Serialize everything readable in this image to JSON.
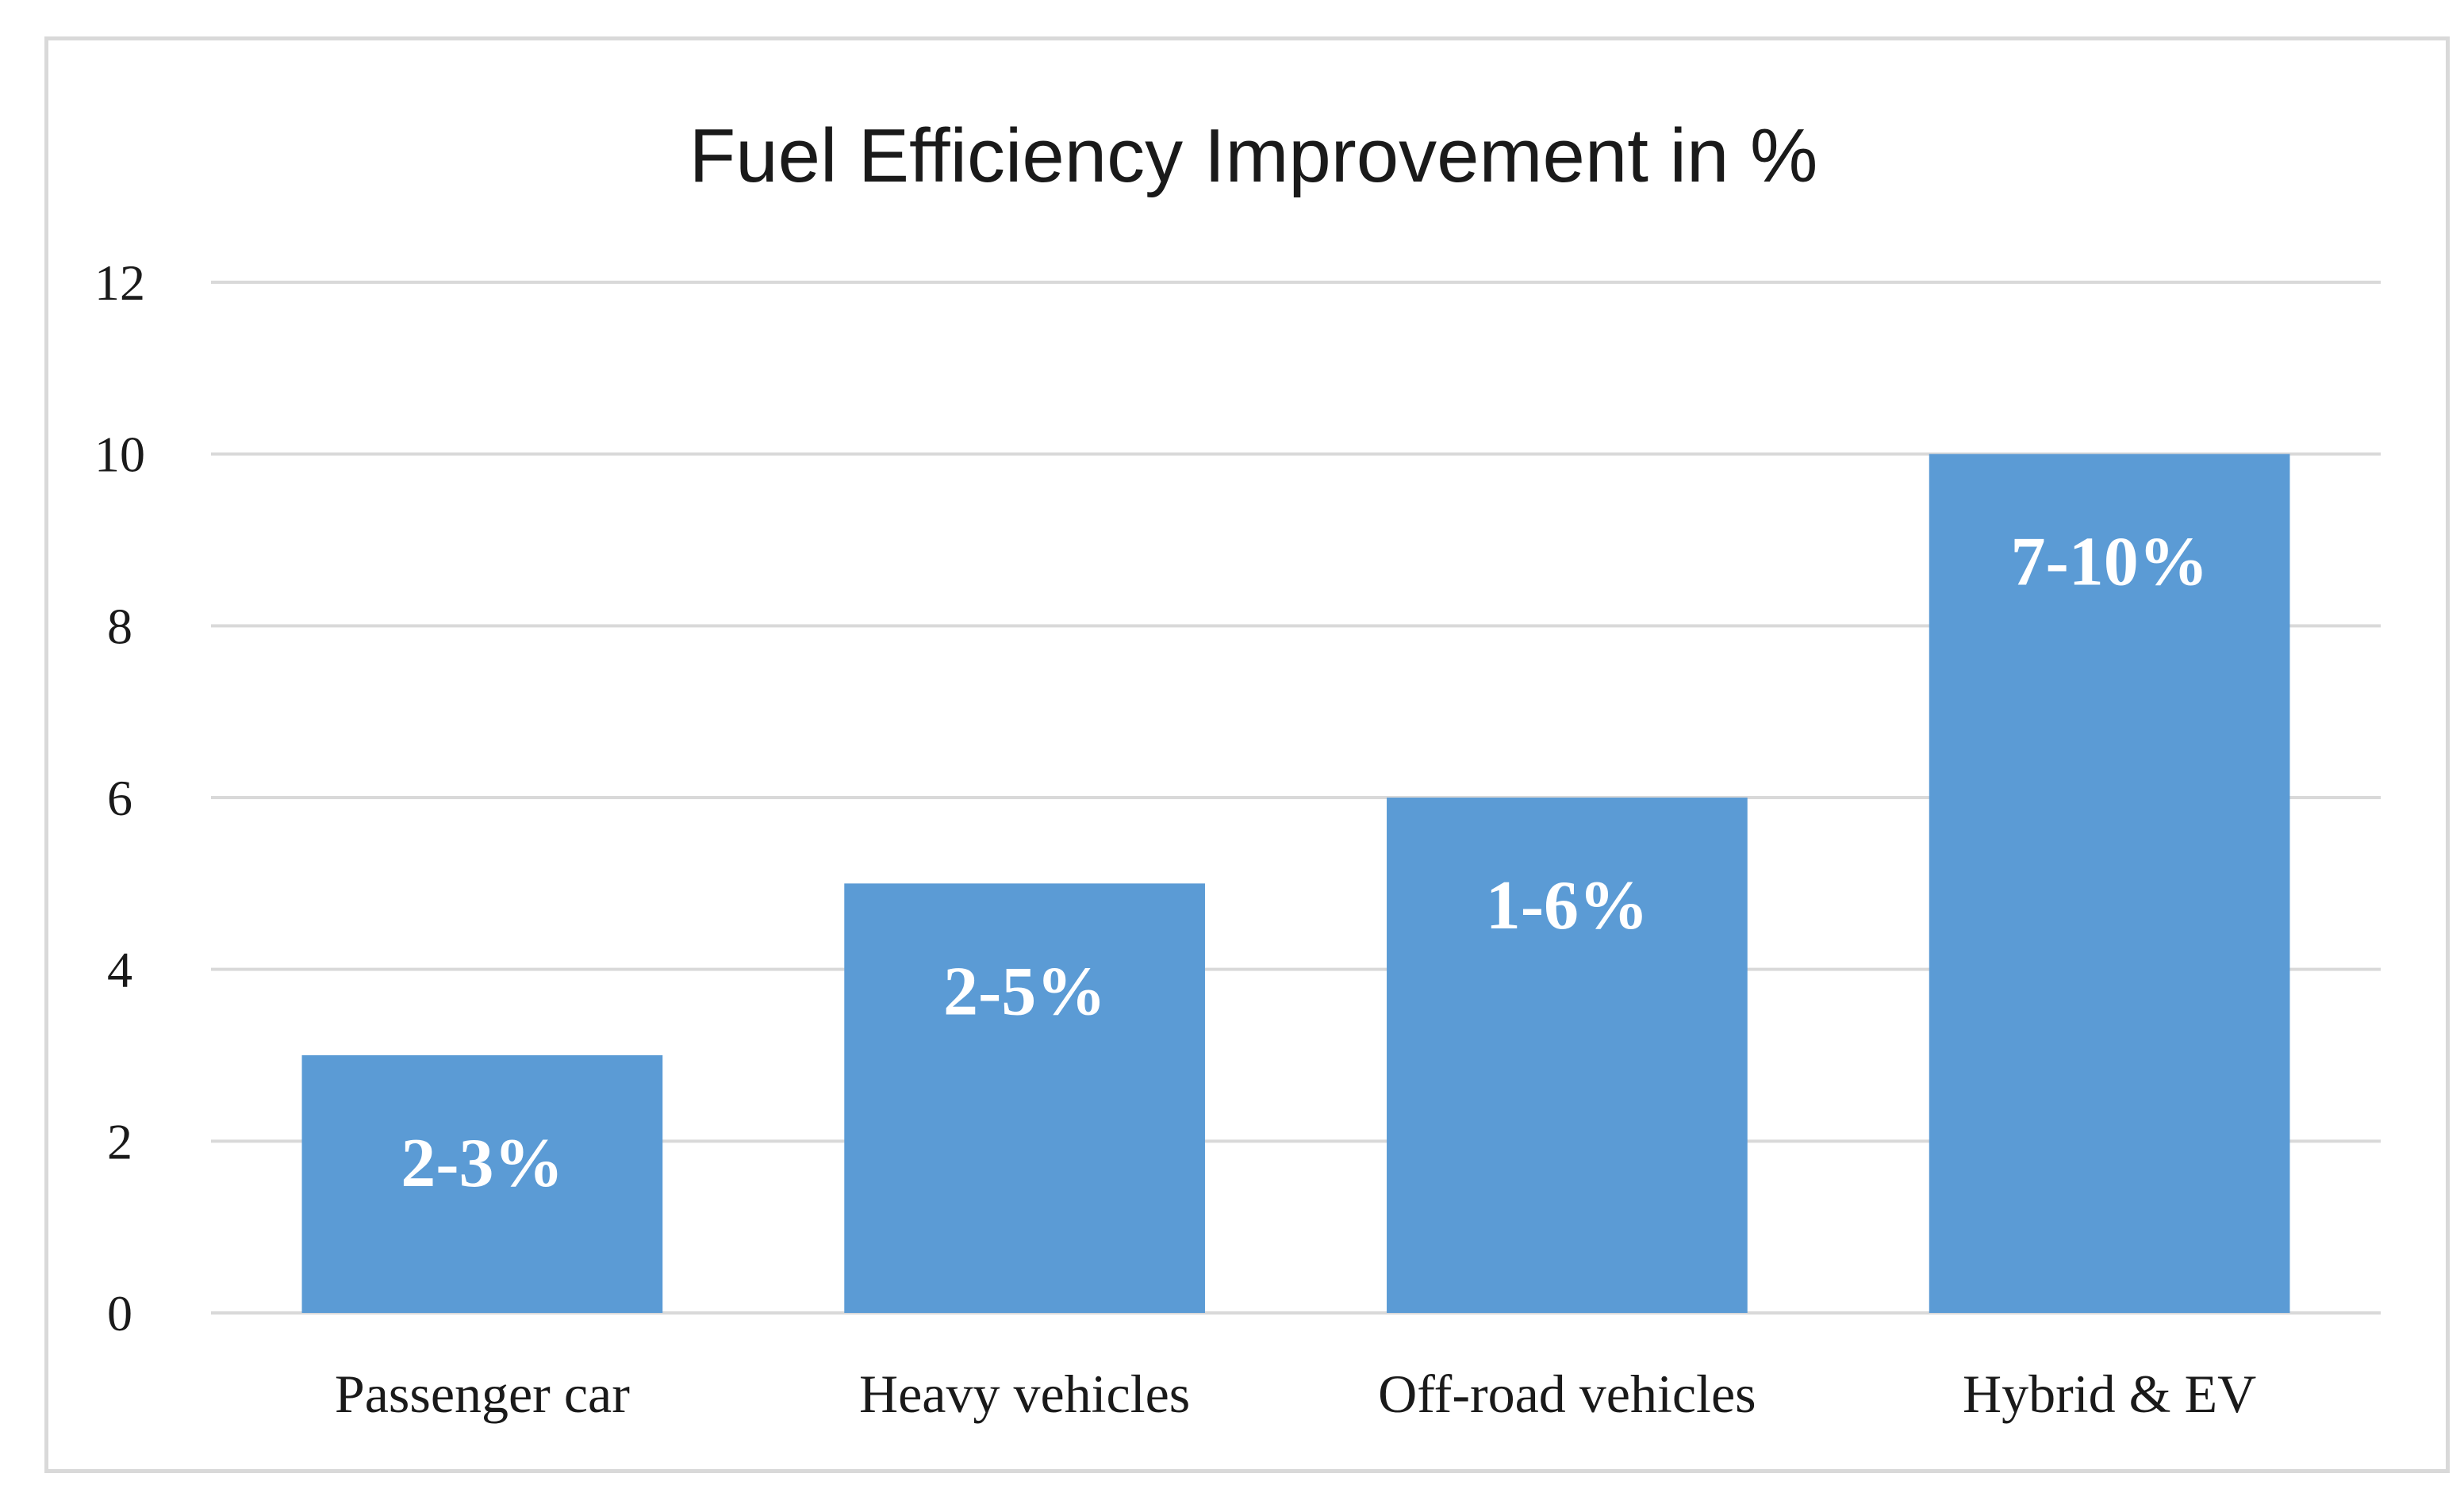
{
  "chart_data": {
    "type": "bar",
    "title": "Fuel Efficiency Improvement in %",
    "categories": [
      "Passenger car",
      "Heavy vehicles",
      "Off-road vehicles",
      "Hybrid & EV"
    ],
    "values": [
      3,
      5,
      6,
      10
    ],
    "data_labels": [
      "2-3%",
      "2-5%",
      "1-6%",
      "7-10%"
    ],
    "yticks": [
      0,
      2,
      4,
      6,
      8,
      10,
      12
    ],
    "ylim": [
      0,
      12
    ],
    "xlabel": "",
    "ylabel": "",
    "grid": true,
    "legend": "none",
    "bar_color": "#5b9bd5",
    "gridline_color": "#d9d9d9"
  }
}
